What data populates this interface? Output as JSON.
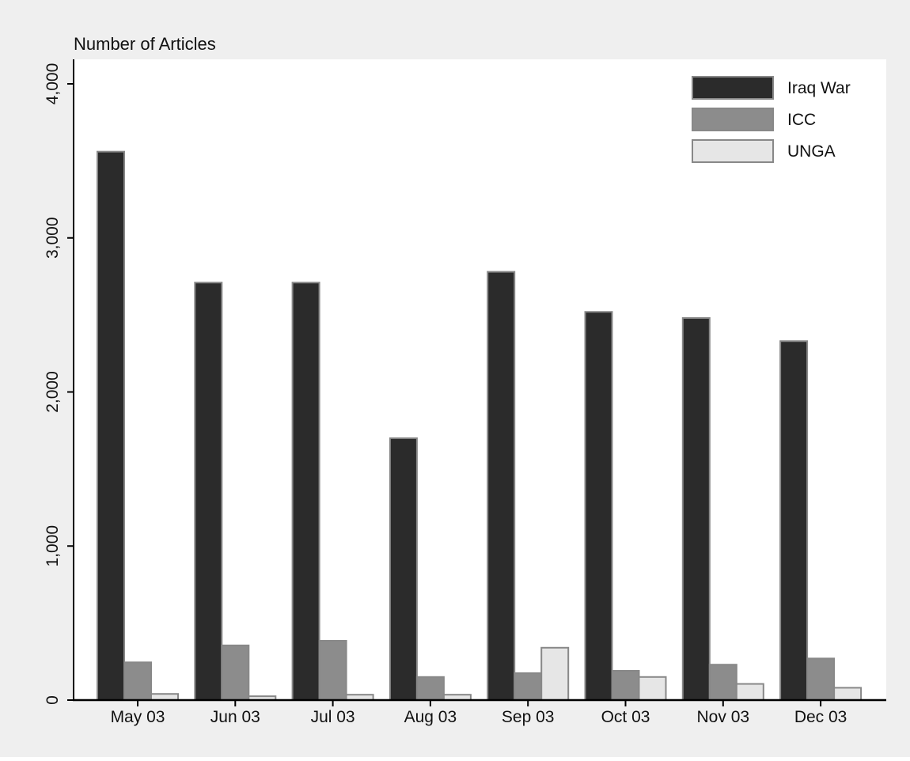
{
  "chart_data": {
    "type": "bar",
    "ylabel": "Number of Articles",
    "ylim": [
      0,
      4000
    ],
    "yticks": [
      0,
      1000,
      2000,
      3000,
      4000
    ],
    "ytick_labels": [
      "0",
      "1,000",
      "2,000",
      "3,000",
      "4,000"
    ],
    "categories": [
      "May 03",
      "Jun 03",
      "Jul 03",
      "Aug 03",
      "Sep 03",
      "Oct 03",
      "Nov 03",
      "Dec 03"
    ],
    "series": [
      {
        "name": "Iraq War",
        "color": "#2b2b2b",
        "values": [
          3560,
          2710,
          2710,
          1700,
          2780,
          2520,
          2480,
          2330
        ]
      },
      {
        "name": "ICC",
        "color": "#8c8c8c",
        "values": [
          245,
          355,
          385,
          150,
          175,
          190,
          230,
          270
        ]
      },
      {
        "name": "UNGA",
        "color": "#e6e6e6",
        "values": [
          40,
          25,
          35,
          35,
          340,
          150,
          105,
          80
        ]
      }
    ],
    "legend_position": "top-right",
    "grid": false,
    "colors": {
      "background": "#efefef",
      "plot_background": "#ffffff",
      "bar_outline": "#888888"
    }
  }
}
